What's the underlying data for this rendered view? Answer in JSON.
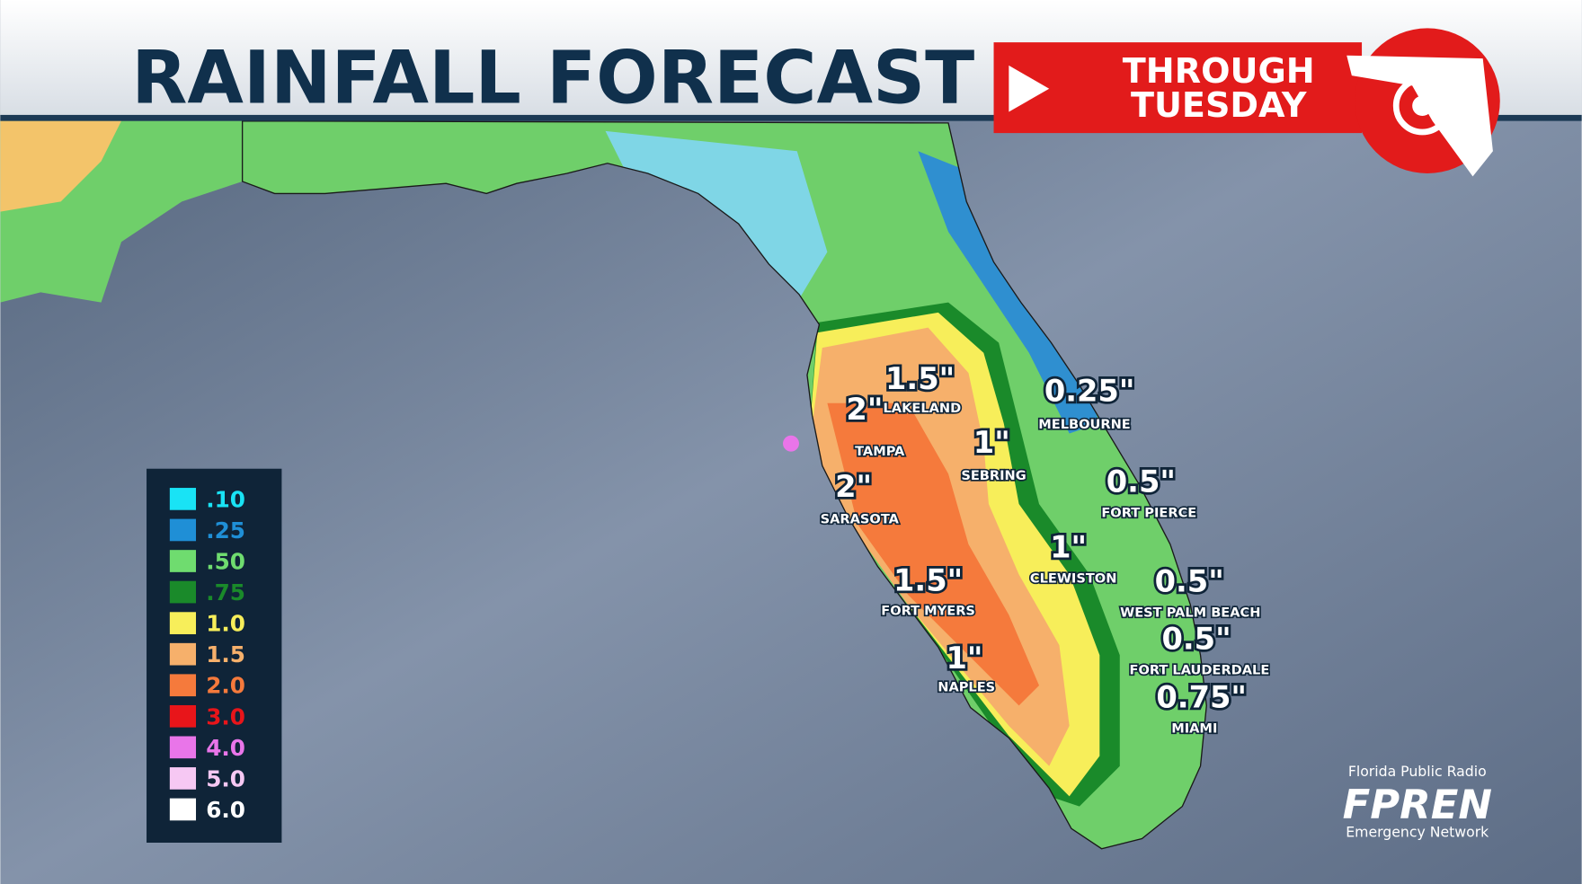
{
  "header": {
    "title": "RAINFALL FORECAST",
    "badge": [
      "THROUGH",
      "TUESDAY"
    ]
  },
  "cities": [
    {
      "amount": "1.5\"",
      "name": "LAKELAND"
    },
    {
      "amount": "2\"",
      "name": "TAMPA"
    },
    {
      "amount": "1\"",
      "name": "SEBRING"
    },
    {
      "amount": "2\"",
      "name": "SARASOTA"
    },
    {
      "amount": "1.5\"",
      "name": "FORT MYERS"
    },
    {
      "amount": "1\"",
      "name": "NAPLES"
    },
    {
      "amount": "0.25\"",
      "name": "MELBOURNE"
    },
    {
      "amount": "0.5\"",
      "name": "FORT PIERCE"
    },
    {
      "amount": "1\"",
      "name": "CLEWISTON"
    },
    {
      "amount": "0.5\"",
      "name": "WEST PALM BEACH"
    },
    {
      "amount": "0.5\"",
      "name": "FORT LAUDERDALE"
    },
    {
      "amount": "0.75\"",
      "name": "MIAMI"
    }
  ],
  "legend": [
    {
      "label": ".10",
      "color": "#19e3f5"
    },
    {
      "label": ".25",
      "color": "#1f8fd6"
    },
    {
      "label": ".50",
      "color": "#6fdc6f"
    },
    {
      "label": ".75",
      "color": "#1a8a2a"
    },
    {
      "label": "1.0",
      "color": "#f7ee5a"
    },
    {
      "label": "1.5",
      "color": "#f6b06b"
    },
    {
      "label": "2.0",
      "color": "#f57a3c"
    },
    {
      "label": "3.0",
      "color": "#e8151a"
    },
    {
      "label": "4.0",
      "color": "#e975e9"
    },
    {
      "label": "5.0",
      "color": "#f6c8f3"
    },
    {
      "label": "6.0",
      "color": "#ffffff"
    }
  ],
  "branding": {
    "top": "Florida Public Radio",
    "logo": "FPREN",
    "bottom": "Emergency Network"
  }
}
